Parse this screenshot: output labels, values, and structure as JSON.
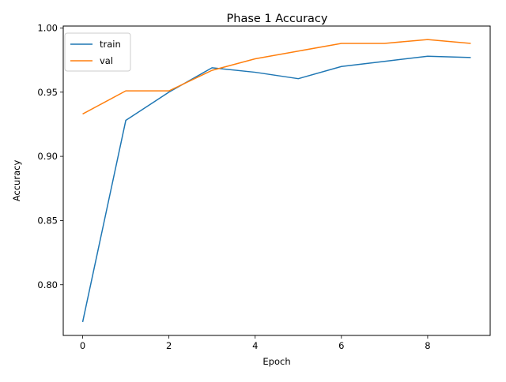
{
  "chart_data": {
    "type": "line",
    "title": "Phase 1 Accuracy",
    "xlabel": "Epoch",
    "ylabel": "Accuracy",
    "xlim": [
      -0.45,
      9.45
    ],
    "ylim": [
      0.7605,
      1.0015
    ],
    "x_ticks": [
      0,
      2,
      4,
      6,
      8
    ],
    "x_tick_labels": [
      "0",
      "2",
      "4",
      "6",
      "8"
    ],
    "y_ticks": [
      0.8,
      0.85,
      0.9,
      0.95,
      1.0
    ],
    "y_tick_labels": [
      "0.80",
      "0.85",
      "0.90",
      "0.95",
      "1.00"
    ],
    "grid": false,
    "legend_position": "top-left",
    "x": [
      0,
      1,
      2,
      3,
      4,
      5,
      6,
      7,
      8,
      9
    ],
    "series": [
      {
        "name": "train",
        "color": "#1f77b4",
        "values": [
          0.771,
          0.928,
          0.95,
          0.969,
          0.9655,
          0.9605,
          0.97,
          0.974,
          0.978,
          0.977
        ]
      },
      {
        "name": "val",
        "color": "#ff7f0e",
        "values": [
          0.933,
          0.951,
          0.951,
          0.967,
          0.976,
          0.982,
          0.988,
          0.988,
          0.991,
          0.988
        ]
      }
    ]
  }
}
